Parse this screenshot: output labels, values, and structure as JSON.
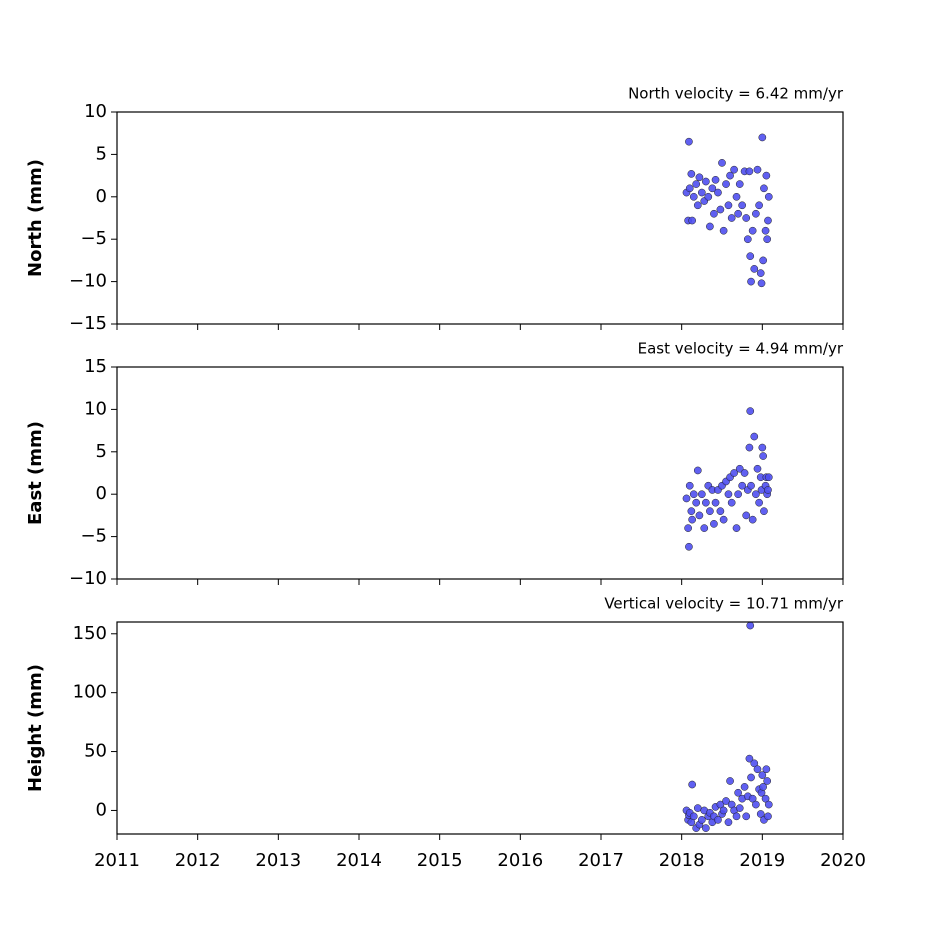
{
  "chart_data": [
    {
      "type": "scatter",
      "title": "North velocity = 6.42 mm/yr",
      "ylabel": "North (mm)",
      "color": "#4f4ff0",
      "x": [
        2018.06,
        2018.08,
        2018.09,
        2018.1,
        2018.12,
        2018.13,
        2018.15,
        2018.18,
        2018.2,
        2018.22,
        2018.25,
        2018.28,
        2018.3,
        2018.33,
        2018.35,
        2018.38,
        2018.4,
        2018.42,
        2018.45,
        2018.48,
        2018.5,
        2018.52,
        2018.55,
        2018.58,
        2018.6,
        2018.62,
        2018.65,
        2018.68,
        2018.7,
        2018.72,
        2018.75,
        2018.78,
        2018.8,
        2018.82,
        2018.84,
        2018.85,
        2018.86,
        2018.88,
        2018.9,
        2018.92,
        2018.94,
        2018.96,
        2018.98,
        2018.99,
        2019.0,
        2019.01,
        2019.02,
        2019.04,
        2019.05,
        2019.06,
        2019.07,
        2019.08
      ],
      "values": [
        0.5,
        -2.8,
        6.5,
        1,
        2.7,
        -2.8,
        0,
        1.5,
        -1,
        2.3,
        0.5,
        -0.5,
        1.8,
        0,
        -3.5,
        1,
        -2,
        2,
        0.5,
        -1.5,
        4,
        -4,
        1.5,
        -1,
        2.5,
        -2.5,
        3.2,
        0,
        -2,
        1.5,
        -1,
        3,
        -2.5,
        -5,
        3,
        -7,
        -10,
        -4,
        -8.5,
        -2,
        3.2,
        -1,
        -9,
        -10.2,
        7,
        -7.5,
        1,
        -4,
        2.5,
        -5,
        -2.8,
        0
      ],
      "xlim": [
        2011,
        2020
      ],
      "xticks": [
        2011,
        2012,
        2013,
        2014,
        2015,
        2016,
        2017,
        2018,
        2019,
        2020
      ],
      "x_tick_labels": false,
      "ylim": [
        -15,
        10
      ],
      "yticks": [
        {
          "value": -15,
          "label": "−15"
        },
        {
          "value": -10,
          "label": "−10"
        },
        {
          "value": -5,
          "label": "−5"
        },
        0,
        5,
        10
      ]
    },
    {
      "type": "scatter",
      "title": "East velocity = 4.94 mm/yr",
      "ylabel": "East (mm)",
      "color": "#4f4ff0",
      "x": [
        2018.06,
        2018.08,
        2018.09,
        2018.1,
        2018.12,
        2018.13,
        2018.15,
        2018.18,
        2018.2,
        2018.22,
        2018.25,
        2018.28,
        2018.3,
        2018.33,
        2018.35,
        2018.38,
        2018.4,
        2018.42,
        2018.45,
        2018.48,
        2018.5,
        2018.52,
        2018.55,
        2018.58,
        2018.6,
        2018.62,
        2018.65,
        2018.68,
        2018.7,
        2018.72,
        2018.75,
        2018.78,
        2018.8,
        2018.82,
        2018.84,
        2018.85,
        2018.86,
        2018.88,
        2018.9,
        2018.92,
        2018.94,
        2018.96,
        2018.98,
        2018.99,
        2019.0,
        2019.01,
        2019.02,
        2019.04,
        2019.05,
        2019.06,
        2019.07,
        2019.08
      ],
      "values": [
        -0.5,
        -4,
        -6.2,
        1,
        -2,
        -3,
        0,
        -1,
        2.8,
        -2.5,
        0,
        -4,
        -1,
        1,
        -2,
        0.5,
        -3.5,
        -1,
        0.5,
        -2,
        1,
        -3,
        1.5,
        0,
        2,
        -1,
        2.5,
        -4,
        0,
        3,
        1,
        2.5,
        -2.5,
        0.5,
        5.5,
        9.8,
        1,
        -3,
        6.8,
        0,
        3,
        -1,
        2,
        0.5,
        5.5,
        4.5,
        -2,
        1,
        2,
        0,
        0.5,
        2
      ],
      "xlim": [
        2011,
        2020
      ],
      "xticks": [
        2011,
        2012,
        2013,
        2014,
        2015,
        2016,
        2017,
        2018,
        2019,
        2020
      ],
      "x_tick_labels": false,
      "ylim": [
        -10,
        15
      ],
      "yticks": [
        {
          "value": -10,
          "label": "−10"
        },
        {
          "value": -5,
          "label": "−5"
        },
        0,
        5,
        10,
        15
      ]
    },
    {
      "type": "scatter",
      "title": "Vertical velocity = 10.71 mm/yr",
      "ylabel": "Height (mm)",
      "color": "#4f4ff0",
      "x": [
        2018.06,
        2018.08,
        2018.09,
        2018.1,
        2018.12,
        2018.13,
        2018.15,
        2018.18,
        2018.2,
        2018.22,
        2018.25,
        2018.28,
        2018.3,
        2018.33,
        2018.35,
        2018.38,
        2018.4,
        2018.42,
        2018.45,
        2018.48,
        2018.5,
        2018.52,
        2018.55,
        2018.58,
        2018.6,
        2018.62,
        2018.65,
        2018.68,
        2018.7,
        2018.72,
        2018.75,
        2018.78,
        2018.8,
        2018.82,
        2018.84,
        2018.85,
        2018.86,
        2018.88,
        2018.9,
        2018.92,
        2018.94,
        2018.96,
        2018.98,
        2018.99,
        2019.0,
        2019.01,
        2019.02,
        2019.04,
        2019.05,
        2019.06,
        2019.07,
        2019.08
      ],
      "values": [
        0,
        -8,
        -4,
        -2,
        -10,
        22,
        -5,
        -15,
        2,
        -12,
        -8,
        0,
        -15,
        -5,
        -2,
        -10,
        -5,
        3,
        -8,
        5,
        -3,
        0,
        8,
        -10,
        25,
        5,
        0,
        -5,
        15,
        2,
        10,
        20,
        -5,
        12,
        44,
        157,
        28,
        10,
        40,
        5,
        35,
        18,
        -3,
        15,
        30,
        20,
        -8,
        10,
        35,
        25,
        -5,
        5
      ],
      "xlim": [
        2011,
        2020
      ],
      "xticks": [
        2011,
        2012,
        2013,
        2014,
        2015,
        2016,
        2017,
        2018,
        2019,
        2020
      ],
      "x_tick_labels": true,
      "ylim": [
        -20,
        160
      ],
      "yticks": [
        0,
        50,
        100,
        150
      ]
    }
  ]
}
